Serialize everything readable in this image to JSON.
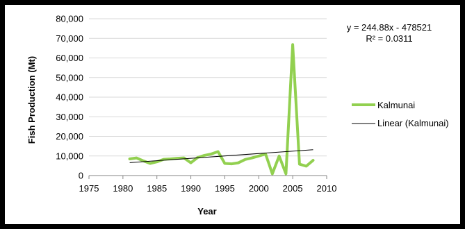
{
  "chart_data": {
    "type": "line",
    "xlabel": "Year",
    "ylabel": "Fish Production (Mt)",
    "xlim": [
      1975,
      2010
    ],
    "ylim": [
      0,
      80000
    ],
    "xticks": [
      "1975",
      "1980",
      "1985",
      "1990",
      "1995",
      "2000",
      "2005",
      "2010"
    ],
    "yticks": [
      "0",
      "10,000",
      "20,000",
      "30,000",
      "40,000",
      "50,000",
      "60,000",
      "70,000",
      "80,000"
    ],
    "grid": "horizontal",
    "legend_position": "right",
    "series": [
      {
        "name": "Kalmunai",
        "color": "#92d050",
        "x": [
          1981,
          1982,
          1983,
          1984,
          1985,
          1986,
          1987,
          1988,
          1989,
          1990,
          1991,
          1992,
          1993,
          1994,
          1995,
          1996,
          1997,
          1998,
          1999,
          2000,
          2001,
          2002,
          2003,
          2004,
          2005,
          2006,
          2007,
          2008
        ],
        "y": [
          8500,
          9000,
          7500,
          6200,
          7000,
          8300,
          8500,
          8800,
          9000,
          6500,
          9200,
          10300,
          11000,
          12200,
          6200,
          6000,
          6500,
          8200,
          9000,
          10000,
          11000,
          900,
          10000,
          900,
          66800,
          5800,
          4800,
          7800
        ]
      }
    ],
    "trendline": {
      "name": "Linear (Kalmunai)",
      "color": "#000000",
      "x": [
        1981,
        2008
      ],
      "slope": 244.88,
      "intercept": -478521
    },
    "annotations": {
      "equation": "y = 244.88x - 478521",
      "r_squared": "R² = 0.0311"
    }
  }
}
